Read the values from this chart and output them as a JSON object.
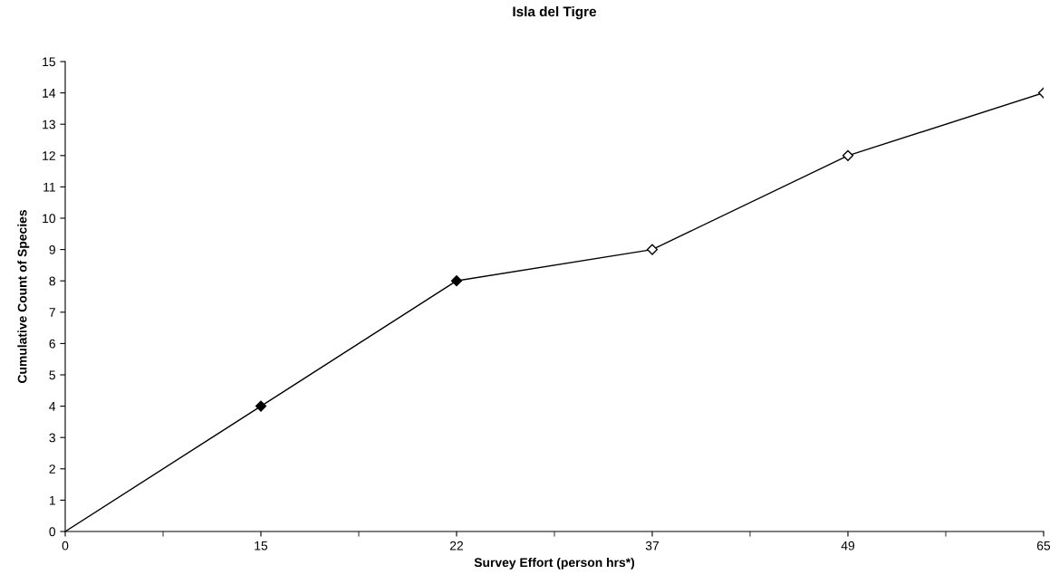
{
  "chart_data": {
    "type": "line",
    "title": "Isla del Tigre",
    "xlabel": "Survey Effort (person hrs*)",
    "ylabel": "Cumulative Count of Species",
    "categories": [
      "0",
      "15",
      "22",
      "37",
      "49",
      "65"
    ],
    "series": [
      {
        "color": "#000000",
        "values": [
          0,
          4,
          8,
          9,
          12,
          14
        ],
        "colors": [
          null,
          "#000000",
          "#000000",
          "#ffffff",
          "#ffffff",
          "#ffffff"
        ]
      }
    ],
    "marker": "diamond",
    "ylim": [
      0,
      15
    ],
    "yticks": [
      0,
      1,
      2,
      3,
      4,
      5,
      6,
      7,
      8,
      9,
      10,
      11,
      12,
      13,
      14,
      15
    ],
    "grid": false,
    "legend": false
  }
}
